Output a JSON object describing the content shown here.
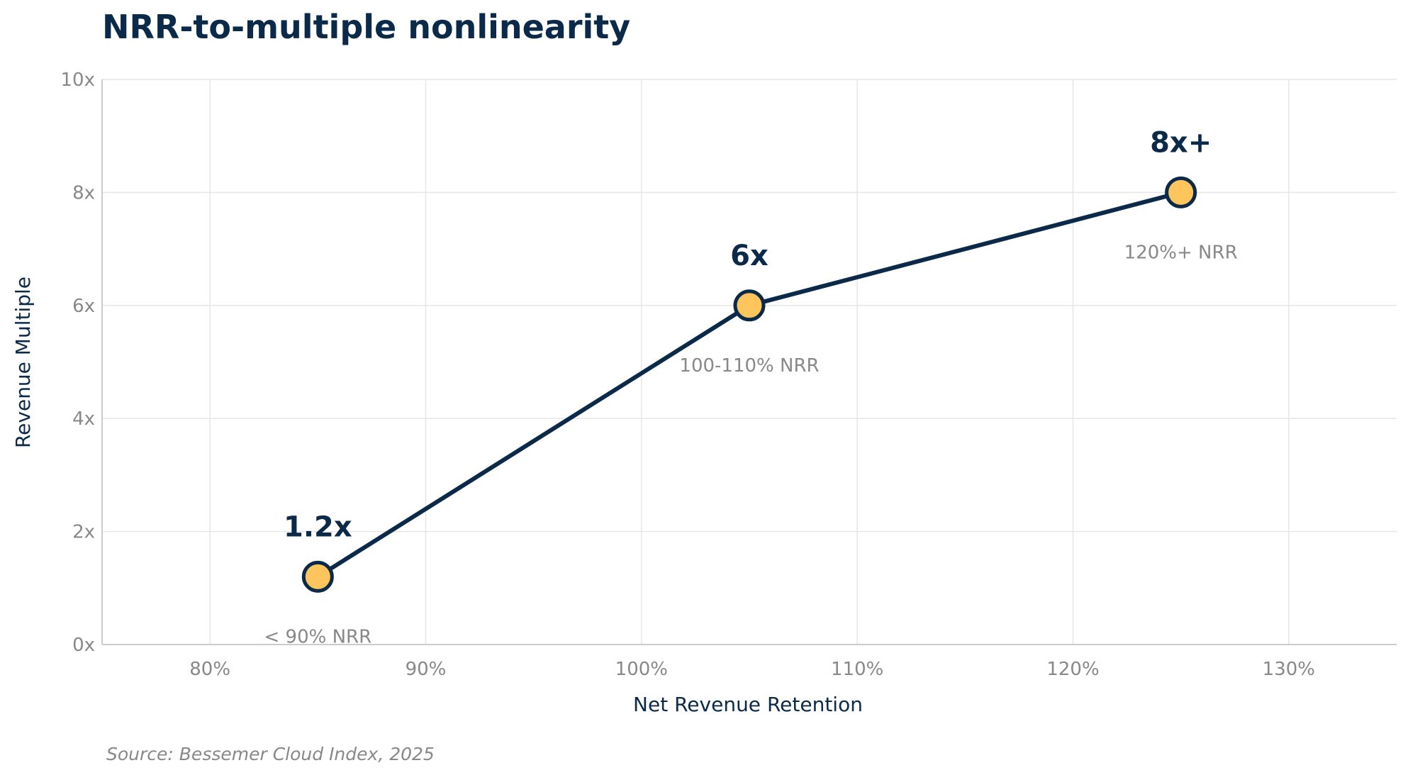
{
  "chart_data": {
    "type": "line",
    "title": "NRR-to-multiple nonlinearity",
    "xlabel": "Net Revenue Retention",
    "ylabel": "Revenue Multiple",
    "xlim": [
      75,
      135
    ],
    "ylim": [
      0,
      10
    ],
    "x_ticks": [
      80,
      90,
      100,
      110,
      120,
      130
    ],
    "x_tick_labels": [
      "80%",
      "90%",
      "100%",
      "110%",
      "120%",
      "130%"
    ],
    "y_ticks": [
      0,
      2,
      4,
      6,
      8,
      10
    ],
    "y_tick_labels": [
      "0x",
      "2x",
      "4x",
      "6x",
      "8x",
      "10x"
    ],
    "grid": true,
    "series": [
      {
        "points": [
          {
            "x": 85,
            "y": 1.2,
            "label": "1.2x",
            "note": "< 90% NRR"
          },
          {
            "x": 105,
            "y": 6,
            "label": "6x",
            "note": "100-110% NRR"
          },
          {
            "x": 125,
            "y": 8,
            "label": "8x+",
            "note": "120%+ NRR"
          }
        ]
      }
    ],
    "source": "Source: Bessemer Cloud Index, 2025",
    "colors": {
      "line": "#0b2a4a",
      "marker_fill": "#fdc55c",
      "marker_stroke": "#0b2a4a",
      "text_primary": "#0b2a4a",
      "text_muted": "#888888",
      "grid": "#e6e6e6"
    }
  }
}
